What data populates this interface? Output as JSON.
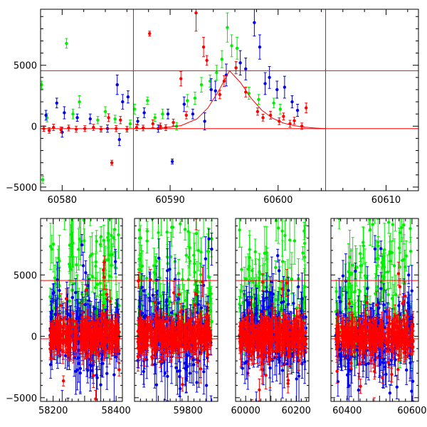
{
  "chart_data": [
    {
      "type": "scatter",
      "title": "",
      "xlabel": "",
      "ylabel": "",
      "xlim": [
        60578,
        60613
      ],
      "ylim": [
        -5300,
        9600
      ],
      "xticks": [
        60580,
        60590,
        60600,
        60610
      ],
      "yticks": [
        -5000,
        0,
        5000
      ],
      "grid": false,
      "error_bars": true,
      "colors": {
        "red": "#ff0000",
        "green": "#00ee00",
        "blue": "#0000ee",
        "line": "#ff0000"
      },
      "reference_lines": {
        "horizontal": [
          4550,
          -200
        ],
        "vertical": [
          60586.6,
          60604.4
        ]
      },
      "model_curve": {
        "color": "#ff0000",
        "points": [
          [
            60586.6,
            -200
          ],
          [
            60589,
            -160
          ],
          [
            60591,
            40
          ],
          [
            60592.5,
            600
          ],
          [
            60593.5,
            1500
          ],
          [
            60594.5,
            2900
          ],
          [
            60595.5,
            4550
          ],
          [
            60596.5,
            3600
          ],
          [
            60597.5,
            2300
          ],
          [
            60598.5,
            1300
          ],
          [
            60599.5,
            650
          ],
          [
            60600.5,
            250
          ],
          [
            60601.5,
            40
          ],
          [
            60602.5,
            -80
          ],
          [
            60603.5,
            -160
          ],
          [
            60604.4,
            -200
          ]
        ]
      },
      "series": [
        {
          "color": "red",
          "points": [
            [
              60578.3,
              -200,
              220
            ],
            [
              60578.8,
              -350,
              230
            ],
            [
              60579.2,
              -100,
              260
            ],
            [
              60579.9,
              -300,
              230
            ],
            [
              60580.6,
              -150,
              240
            ],
            [
              60581.3,
              -250,
              250
            ],
            [
              60582.1,
              -200,
              240
            ],
            [
              60582.9,
              -100,
              250
            ],
            [
              60583.6,
              -250,
              230
            ],
            [
              60584.3,
              700,
              320
            ],
            [
              60584.6,
              -3000,
              200
            ],
            [
              60585.0,
              -200,
              250
            ],
            [
              60585.4,
              500,
              300
            ],
            [
              60586.0,
              -250,
              230
            ],
            [
              60586.9,
              -100,
              260
            ],
            [
              60587.5,
              -150,
              230
            ],
            [
              60588.1,
              7600,
              200
            ],
            [
              60588.4,
              200,
              320
            ],
            [
              60589.1,
              0,
              250
            ],
            [
              60589.6,
              -120,
              240
            ],
            [
              60590.3,
              300,
              280
            ],
            [
              60591.0,
              3900,
              600
            ],
            [
              60591.5,
              900,
              300
            ],
            [
              60592.4,
              9300,
              1500
            ],
            [
              60593.1,
              6500,
              800
            ],
            [
              60593.4,
              5400,
              400
            ],
            [
              60594.6,
              2600,
              350
            ],
            [
              60595.0,
              3700,
              450
            ],
            [
              60596.1,
              4800,
              500
            ],
            [
              60597.0,
              2800,
              400
            ],
            [
              60598.1,
              1200,
              300
            ],
            [
              60598.6,
              700,
              280
            ],
            [
              60599.3,
              900,
              320
            ],
            [
              60600.1,
              400,
              280
            ],
            [
              60600.5,
              800,
              280
            ],
            [
              60601.1,
              200,
              280
            ],
            [
              60601.5,
              450,
              280
            ],
            [
              60602.2,
              0,
              260
            ],
            [
              60602.6,
              1500,
              400
            ]
          ]
        },
        {
          "color": "green",
          "points": [
            [
              60578.1,
              3400,
              300
            ],
            [
              60578.2,
              -4400,
              300
            ],
            [
              60578.6,
              700,
              350
            ],
            [
              60580.4,
              6800,
              400
            ],
            [
              60581.0,
              1000,
              400
            ],
            [
              60581.6,
              2000,
              500
            ],
            [
              60583.3,
              500,
              300
            ],
            [
              60584.0,
              1200,
              400
            ],
            [
              60584.9,
              600,
              300
            ],
            [
              60586.3,
              200,
              300
            ],
            [
              60586.7,
              1400,
              400
            ],
            [
              60587.9,
              2100,
              300
            ],
            [
              60588.6,
              700,
              300
            ],
            [
              60589.3,
              1000,
              400
            ],
            [
              60590.6,
              0,
              300
            ],
            [
              60591.6,
              2100,
              500
            ],
            [
              60592.3,
              2300,
              500
            ],
            [
              60592.9,
              3400,
              600
            ],
            [
              60593.7,
              3700,
              500
            ],
            [
              60594.3,
              4400,
              600
            ],
            [
              60594.8,
              5500,
              700
            ],
            [
              60595.3,
              8100,
              1200
            ],
            [
              60595.7,
              6600,
              900
            ],
            [
              60596.2,
              6400,
              900
            ],
            [
              60597.3,
              2700,
              500
            ],
            [
              60598.2,
              2200,
              400
            ],
            [
              60599.6,
              1900,
              400
            ],
            [
              60600.2,
              1400,
              400
            ]
          ]
        },
        {
          "color": "blue",
          "points": [
            [
              60578.5,
              900,
              400
            ],
            [
              60579.5,
              1900,
              400
            ],
            [
              60580.0,
              -500,
              400
            ],
            [
              60580.2,
              1100,
              500
            ],
            [
              60581.4,
              700,
              300
            ],
            [
              60582.6,
              600,
              400
            ],
            [
              60584.2,
              -200,
              300
            ],
            [
              60585.1,
              3400,
              800
            ],
            [
              60585.3,
              -1100,
              500
            ],
            [
              60585.6,
              2000,
              600
            ],
            [
              60586.1,
              2400,
              500
            ],
            [
              60587.0,
              400,
              300
            ],
            [
              60587.6,
              1100,
              400
            ],
            [
              60588.9,
              -200,
              300
            ],
            [
              60589.8,
              1000,
              400
            ],
            [
              60590.2,
              -2900,
              200
            ],
            [
              60591.3,
              1800,
              600
            ],
            [
              60592.1,
              1000,
              400
            ],
            [
              60593.2,
              400,
              700
            ],
            [
              60593.8,
              3000,
              900
            ],
            [
              60594.2,
              2900,
              800
            ],
            [
              60595.2,
              4200,
              900
            ],
            [
              60596.5,
              5200,
              1000
            ],
            [
              60597.0,
              4700,
              900
            ],
            [
              60597.8,
              8500,
              1100
            ],
            [
              60598.3,
              6500,
              1000
            ],
            [
              60598.8,
              3500,
              900
            ],
            [
              60599.2,
              4000,
              900
            ],
            [
              60599.9,
              3000,
              700
            ],
            [
              60600.6,
              3200,
              900
            ],
            [
              60601.3,
              2000,
              500
            ],
            [
              60601.8,
              1300,
              500
            ]
          ]
        }
      ]
    },
    {
      "type": "scatter",
      "title": "",
      "xlabel": "",
      "ylabel": "",
      "ylim": [
        -5300,
        9600
      ],
      "xticks": [
        58200,
        58400,
        59800,
        60000,
        60200,
        60400,
        60600
      ],
      "yticks": [
        -5000,
        0,
        5000
      ],
      "grid": false,
      "error_bars": true,
      "broken_axis": true,
      "colors": {
        "red": "#ff0000",
        "green": "#00ee00",
        "blue": "#0000ee",
        "line": "#ff0000"
      },
      "reference_lines": {
        "horizontal": [
          4550,
          -200
        ]
      },
      "segments": [
        {
          "xlim": [
            58160,
            58420
          ],
          "observed": [
            58190,
            58410
          ],
          "spread": {
            "red": 800,
            "green": 2400,
            "blue": 1500
          }
        },
        {
          "xlim": [
            59620,
            59900
          ],
          "observed": [
            59630,
            59880
          ],
          "spread": {
            "red": 900,
            "green": 2000,
            "blue": 1600
          }
        },
        {
          "xlim": [
            59960,
            60250
          ],
          "observed": [
            59975,
            60240
          ],
          "spread": {
            "red": 900,
            "green": 2100,
            "blue": 1500
          }
        },
        {
          "xlim": [
            60350,
            60620
          ],
          "observed": [
            60365,
            60605
          ],
          "spread": {
            "red": 900,
            "green": 2400,
            "blue": 1600
          }
        }
      ]
    }
  ]
}
